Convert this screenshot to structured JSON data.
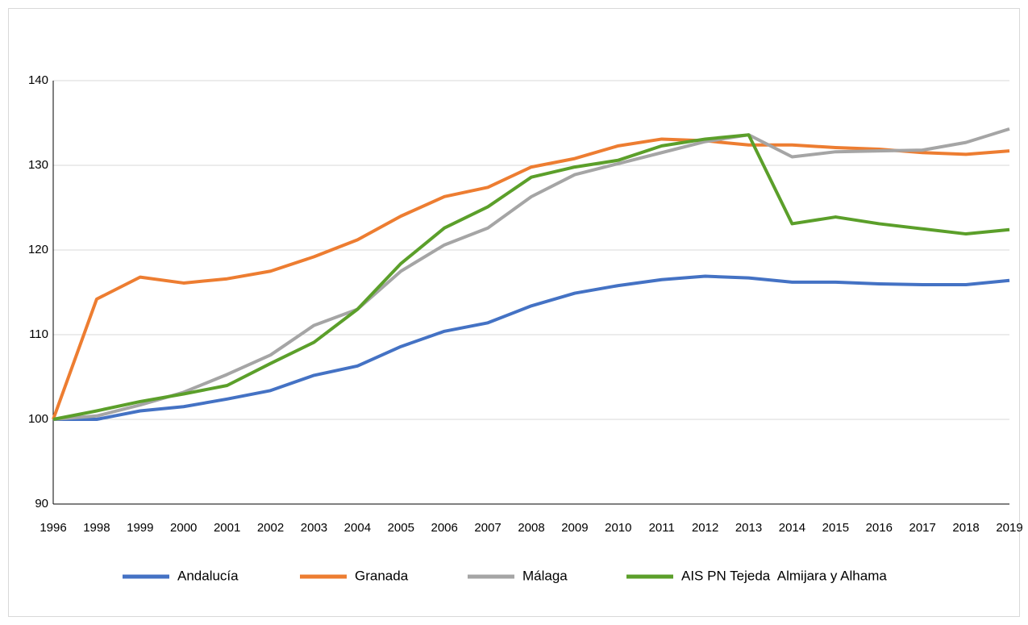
{
  "chart_data": {
    "type": "line",
    "categories": [
      "1996",
      "1998",
      "1999",
      "2000",
      "2001",
      "2002",
      "2003",
      "2004",
      "2005",
      "2006",
      "2007",
      "2008",
      "2009",
      "2010",
      "2011",
      "2012",
      "2013",
      "2014",
      "2015",
      "2016",
      "2017",
      "2018",
      "2019"
    ],
    "series": [
      {
        "name": "Andalucía",
        "color": "#4472c4",
        "values": [
          100,
          100,
          101.0,
          101.5,
          102.4,
          103.4,
          105.2,
          106.3,
          108.6,
          110.4,
          111.4,
          113.4,
          114.9,
          115.8,
          116.5,
          116.9,
          116.7,
          116.2,
          116.2,
          116.0,
          115.9,
          115.9,
          116.4
        ]
      },
      {
        "name": "Granada",
        "color": "#ed7d31",
        "values": [
          100,
          114.2,
          116.8,
          116.1,
          116.6,
          117.5,
          119.2,
          121.2,
          124.0,
          126.3,
          127.4,
          129.8,
          130.8,
          132.3,
          133.1,
          132.9,
          132.4,
          132.4,
          132.1,
          131.9,
          131.5,
          131.3,
          131.7
        ]
      },
      {
        "name": "Málaga",
        "color": "#a5a5a5",
        "values": [
          100,
          100.4,
          101.7,
          103.2,
          105.3,
          107.6,
          111.1,
          113.0,
          117.5,
          120.6,
          122.6,
          126.3,
          128.9,
          130.2,
          131.5,
          132.8,
          133.6,
          131.0,
          131.6,
          131.7,
          131.8,
          132.7,
          134.3
        ]
      },
      {
        "name": "AIS PN Tejeda  Almijara y Alhama",
        "color": "#5b9f2a",
        "values": [
          100,
          101.0,
          102.1,
          103.0,
          104.0,
          106.6,
          109.1,
          113.0,
          118.4,
          122.6,
          125.1,
          128.6,
          129.8,
          130.6,
          132.3,
          133.1,
          133.6,
          123.1,
          123.9,
          123.1,
          122.5,
          121.9,
          122.4
        ]
      }
    ],
    "ylim": [
      90,
      140
    ],
    "yticks": [
      90,
      100,
      110,
      120,
      130,
      140
    ],
    "grid": true,
    "legend": "bottom"
  }
}
